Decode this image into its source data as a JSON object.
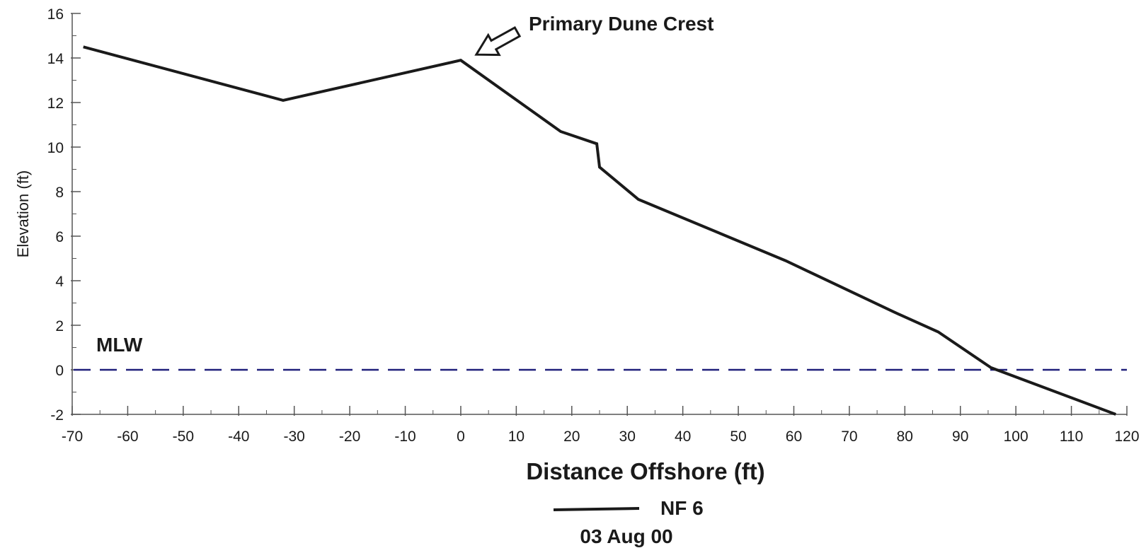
{
  "chart_data": {
    "type": "line",
    "xlabel": "Distance Offshore (ft)",
    "ylabel": "Elevation (ft)",
    "xlim": [
      -70,
      120
    ],
    "ylim": [
      -2,
      16
    ],
    "x_ticks": [
      -70,
      -60,
      -50,
      -40,
      -30,
      -20,
      -10,
      0,
      10,
      20,
      30,
      40,
      50,
      60,
      70,
      80,
      90,
      100,
      110,
      120
    ],
    "y_ticks": [
      -2,
      0,
      2,
      4,
      6,
      8,
      10,
      12,
      14,
      16
    ],
    "x_minor_step": 5,
    "y_minor_step": 1,
    "grid": false,
    "legend_placement": "bottom-center",
    "series": [
      {
        "name": "NF 6",
        "color": "#1a1a1a",
        "x": [
          -68,
          -32,
          0,
          18,
          24.5,
          25,
          32,
          58.5,
          78,
          86,
          95.5,
          118
        ],
        "y": [
          14.5,
          12.1,
          13.9,
          10.7,
          10.15,
          9.1,
          7.65,
          4.9,
          2.6,
          1.7,
          0.1,
          -2.0
        ]
      }
    ],
    "reference_line": {
      "label": "MLW",
      "y": 0,
      "color": "#1f1f7a",
      "style": "dashed"
    },
    "annotation": {
      "text": "Primary Dune Crest",
      "x": 0,
      "y": 13.9
    },
    "legend_subtitle": "03 Aug 00"
  }
}
